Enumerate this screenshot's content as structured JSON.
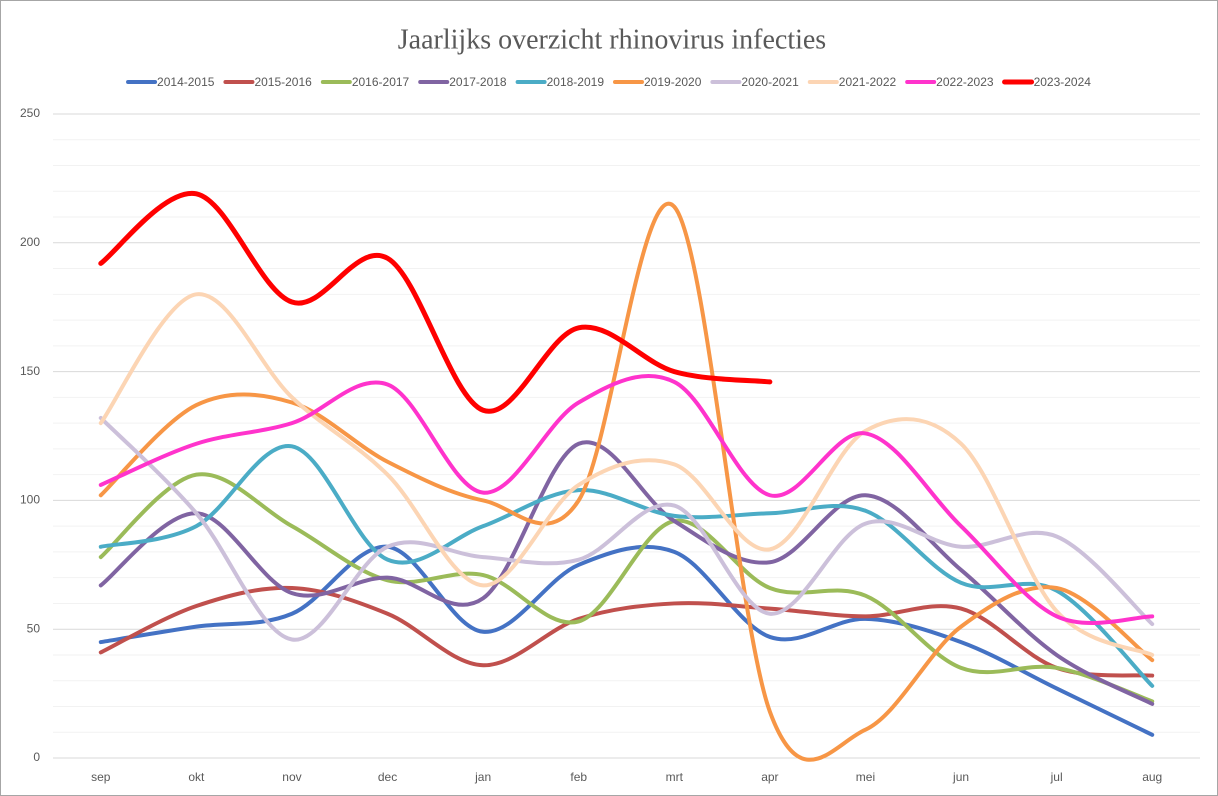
{
  "chart_data": {
    "type": "line",
    "title": "Jaarlijks overzicht rhinovirus infecties",
    "categories": [
      "sep",
      "okt",
      "nov",
      "dec",
      "jan",
      "feb",
      "mrt",
      "apr",
      "mei",
      "jun",
      "jul",
      "aug"
    ],
    "ylim": [
      0,
      250
    ],
    "yticks": [
      0,
      50,
      100,
      150,
      200,
      250
    ],
    "minor_yticks": [
      10,
      20,
      30,
      40,
      60,
      70,
      80,
      90,
      110,
      120,
      130,
      140,
      160,
      170,
      180,
      190,
      210,
      220,
      230,
      240
    ],
    "grid": true,
    "smooth": true,
    "legend": "top",
    "series": [
      {
        "name": "2014-2015",
        "color": "#4472c4",
        "values": [
          45,
          51,
          56,
          82,
          49,
          75,
          80,
          47,
          54,
          45,
          27,
          9
        ]
      },
      {
        "name": "2015-2016",
        "color": "#c0504d",
        "values": [
          41,
          59,
          66,
          56,
          36,
          54,
          60,
          58,
          55,
          58,
          35,
          32
        ]
      },
      {
        "name": "2016-2017",
        "color": "#9bbb59",
        "values": [
          78,
          110,
          90,
          69,
          71,
          53,
          92,
          66,
          63,
          35,
          35,
          22
        ]
      },
      {
        "name": "2017-2018",
        "color": "#8064a2",
        "values": [
          67,
          95,
          64,
          70,
          62,
          122,
          92,
          76,
          102,
          73,
          40,
          21
        ]
      },
      {
        "name": "2018-2019",
        "color": "#4bacc6",
        "values": [
          82,
          90,
          121,
          77,
          90,
          104,
          94,
          95,
          96,
          68,
          65,
          28
        ]
      },
      {
        "name": "2019-2020",
        "color": "#f79646",
        "values": [
          102,
          137,
          138,
          115,
          100,
          100,
          214,
          18,
          11,
          51,
          66,
          38
        ]
      },
      {
        "name": "2020-2021",
        "color": "#ccc0da",
        "values": [
          132,
          95,
          46,
          82,
          78,
          77,
          98,
          56,
          91,
          82,
          86,
          52
        ]
      },
      {
        "name": "2021-2022",
        "color": "#fcd5b4",
        "values": [
          130,
          180,
          140,
          110,
          67,
          106,
          114,
          81,
          127,
          122,
          57,
          40
        ]
      },
      {
        "name": "2022-2023",
        "color": "#ff33cc",
        "values": [
          106,
          122,
          130,
          145,
          103,
          138,
          146,
          102,
          126,
          90,
          55,
          55
        ]
      },
      {
        "name": "2023-2024",
        "color": "#ff0000",
        "values": [
          192,
          219,
          177,
          194,
          135,
          167,
          150,
          146,
          null,
          null,
          null,
          null
        ]
      }
    ]
  }
}
